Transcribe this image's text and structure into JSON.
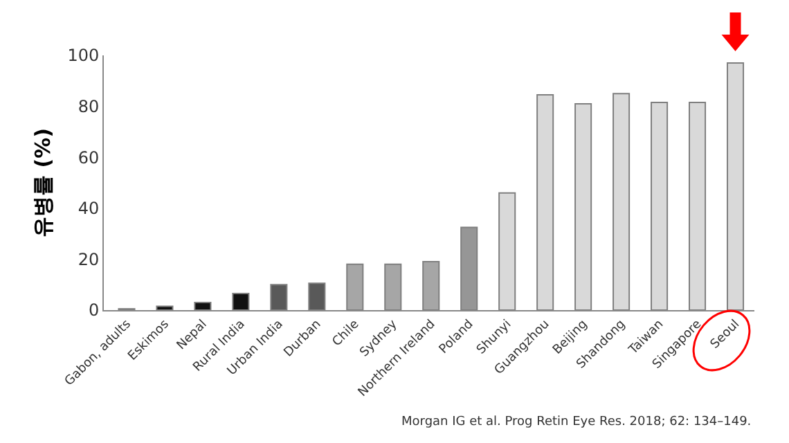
{
  "chart_data": {
    "type": "bar",
    "ylabel": "유병률 (%)",
    "categories": [
      "Gabon, adults",
      "Eskimos",
      "Nepal",
      "Rural India",
      "Urban India",
      "Durban",
      "Chile",
      "Sydney",
      "Northern Ireland",
      "Poland",
      "Shunyi",
      "Guangzhou",
      "Beijing",
      "Shandong",
      "Taiwan",
      "Singapore",
      "Seoul"
    ],
    "values": [
      0.5,
      1.5,
      3,
      6.5,
      10,
      10.5,
      18,
      18,
      19,
      32.5,
      46,
      84.5,
      81,
      85,
      81.5,
      81.5,
      97
    ],
    "colors": [
      "#111111",
      "#111111",
      "#111111",
      "#111111",
      "#595959",
      "#595959",
      "#a6a6a6",
      "#a6a6a6",
      "#a6a6a6",
      "#969696",
      "#d9d9d9",
      "#d9d9d9",
      "#d9d9d9",
      "#d9d9d9",
      "#d9d9d9",
      "#d9d9d9",
      "#d9d9d9"
    ],
    "ylim": [
      0,
      100
    ],
    "yticks": [
      0,
      20,
      40,
      60,
      80,
      100
    ],
    "grid": false,
    "annotations": [
      "Morgan IG et al. Prog Retin Eye Res. 2018; 62: 134–149."
    ]
  }
}
